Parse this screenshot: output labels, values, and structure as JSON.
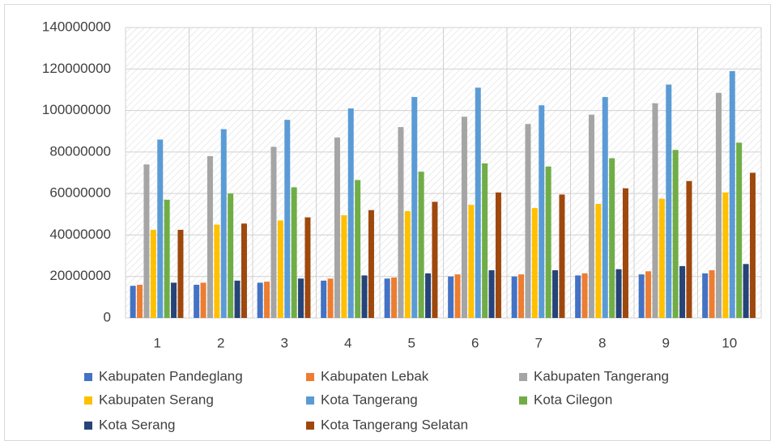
{
  "chart_data": {
    "type": "bar",
    "categories": [
      "1",
      "2",
      "3",
      "4",
      "5",
      "6",
      "7",
      "8",
      "9",
      "10"
    ],
    "series": [
      {
        "name": "Kabupaten Pandeglang",
        "color": "#4472c4",
        "values": [
          15500000,
          16000000,
          17000000,
          18000000,
          19000000,
          20000000,
          20000000,
          20500000,
          21000000,
          21500000
        ]
      },
      {
        "name": "Kabupaten Lebak",
        "color": "#ed7d31",
        "values": [
          16000000,
          17000000,
          17500000,
          19000000,
          19500000,
          21000000,
          21000000,
          21500000,
          22500000,
          23000000
        ]
      },
      {
        "name": "Kabupaten Tangerang",
        "color": "#a5a5a5",
        "values": [
          74000000,
          78000000,
          82500000,
          87000000,
          92000000,
          97000000,
          93500000,
          98000000,
          103500000,
          108500000
        ]
      },
      {
        "name": "Kabupaten Serang",
        "color": "#ffc000",
        "values": [
          42500000,
          45000000,
          47000000,
          49500000,
          51500000,
          54500000,
          53000000,
          55000000,
          57500000,
          60500000
        ]
      },
      {
        "name": "Kota Tangerang",
        "color": "#5b9bd5",
        "values": [
          86000000,
          91000000,
          95500000,
          101000000,
          106500000,
          111000000,
          102500000,
          106500000,
          112500000,
          119000000
        ]
      },
      {
        "name": "Kota Cilegon",
        "color": "#70ad47",
        "values": [
          57000000,
          60000000,
          63000000,
          66500000,
          70500000,
          74500000,
          73000000,
          77000000,
          81000000,
          84500000
        ]
      },
      {
        "name": "Kota Serang",
        "color": "#264478",
        "values": [
          17000000,
          18000000,
          19000000,
          20500000,
          21500000,
          23000000,
          23000000,
          23500000,
          25000000,
          26000000
        ]
      },
      {
        "name": "Kota Tangerang Selatan",
        "color": "#9e480e",
        "values": [
          42500000,
          45500000,
          48500000,
          52000000,
          56000000,
          60500000,
          59500000,
          62500000,
          66000000,
          70000000
        ]
      }
    ],
    "ylim": [
      0,
      140000000
    ],
    "yticks": [
      0,
      20000000,
      40000000,
      60000000,
      80000000,
      100000000,
      120000000,
      140000000
    ],
    "grid": true,
    "legend": "bottom"
  }
}
